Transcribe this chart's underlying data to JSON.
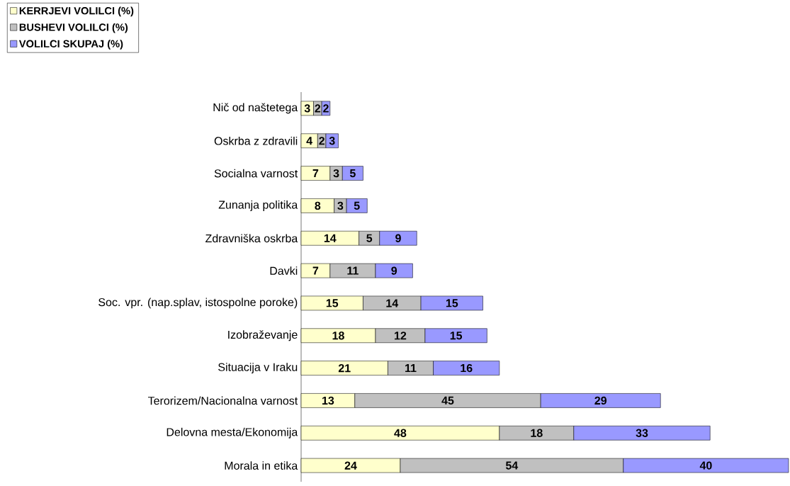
{
  "chart_data": {
    "type": "bar",
    "orientation": "horizontal",
    "stacked": true,
    "data_labels": true,
    "legend": "top left",
    "tick_labels": "y",
    "categories": [
      "Nič od naštetega",
      "Oskrba z zdravili",
      "Socialna varnost",
      "Zunanja politika",
      "Zdravniška oskrba",
      "Davki",
      "Soc. vpr. (nap.splav, istospolne poroke)",
      "Izobraževanje",
      "Situacija v Iraku",
      "Terorizem/Nacionalna varnost",
      "Delovna mesta/Ekonomija",
      "Morala in etika"
    ],
    "series": [
      {
        "name": "KERRJEVI VOLILCI (%)",
        "color": "#ffffcc",
        "values": [
          3,
          4,
          7,
          8,
          14,
          7,
          15,
          18,
          21,
          13,
          48,
          24
        ]
      },
      {
        "name": "BUSHEVI VOLILCI (%)",
        "color": "#c0c0c0",
        "values": [
          2,
          2,
          3,
          3,
          5,
          11,
          14,
          12,
          11,
          45,
          18,
          54
        ]
      },
      {
        "name": "VOLILCI SKUPAJ (%)",
        "color": "#9999ff",
        "values": [
          2,
          3,
          5,
          5,
          9,
          9,
          15,
          15,
          16,
          29,
          33,
          40
        ]
      }
    ]
  }
}
